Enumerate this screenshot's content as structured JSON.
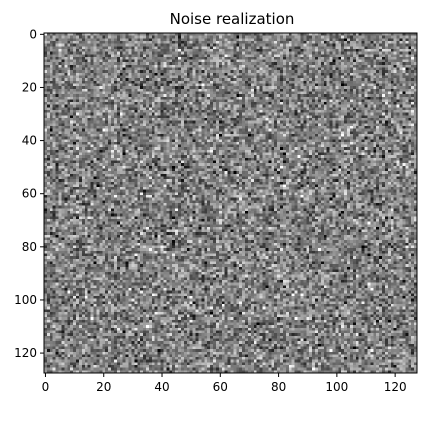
{
  "chart_data": {
    "type": "heatmap",
    "title": "Noise realization",
    "xlabel": "",
    "ylabel": "",
    "rows": 128,
    "cols": 128,
    "colormap": "gray",
    "value_distribution": "gaussian random noise",
    "xlim": [
      -0.5,
      127.5
    ],
    "ylim": [
      127.5,
      -0.5
    ],
    "xticks": [
      0,
      20,
      40,
      60,
      80,
      100,
      120
    ],
    "yticks": [
      0,
      20,
      40,
      60,
      80,
      100,
      120
    ],
    "xtick_labels": [
      "0",
      "20",
      "40",
      "60",
      "80",
      "100",
      "120"
    ],
    "ytick_labels": [
      "0",
      "20",
      "40",
      "60",
      "80",
      "100",
      "120"
    ],
    "grid": false
  }
}
